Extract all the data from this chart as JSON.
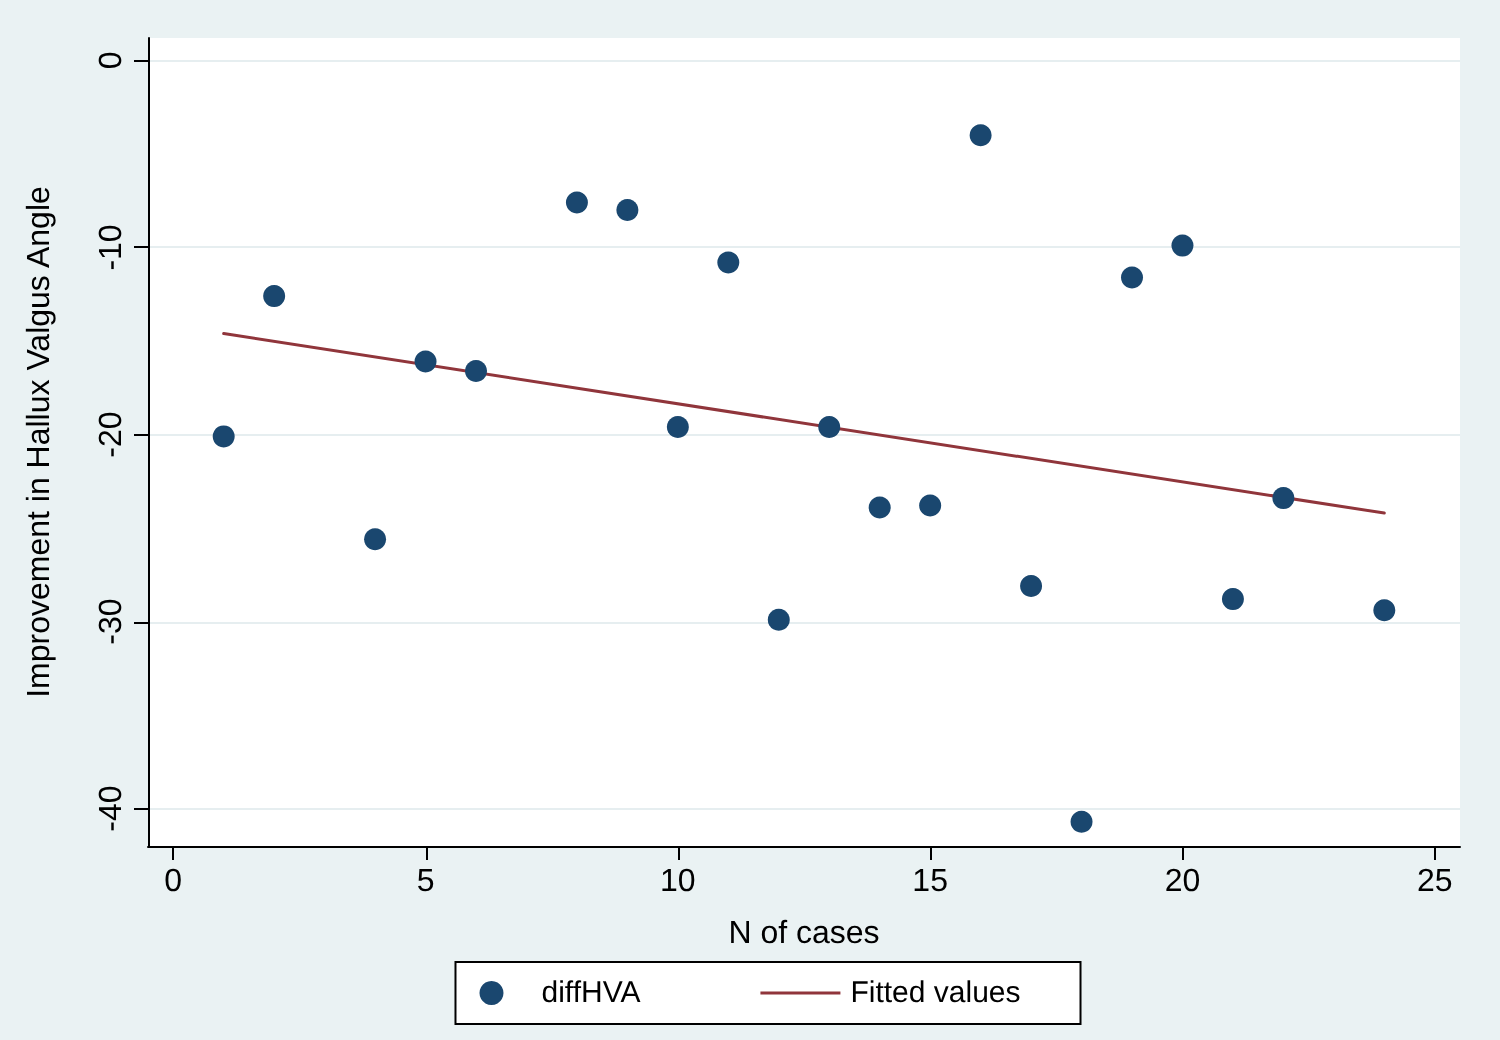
{
  "chart_data": {
    "type": "scatter",
    "xlabel": "N of cases",
    "ylabel": "Improvement in Hallux Valgus Angle",
    "x": [
      1,
      2,
      4,
      5,
      6,
      8,
      9,
      10,
      11,
      12,
      13,
      14,
      15,
      16,
      17,
      18,
      19,
      20,
      21,
      22,
      24
    ],
    "series": [
      {
        "name": "diffHVA",
        "color": "#1a476f",
        "marker": "circle",
        "values": [
          -20.1,
          -12.6,
          -25.6,
          -16.1,
          -16.6,
          -7.6,
          -8.0,
          -19.6,
          -10.8,
          -29.9,
          -19.6,
          -23.9,
          -23.8,
          -4.0,
          -28.1,
          -40.7,
          -11.6,
          -9.9,
          -28.8,
          -23.4,
          -29.4
        ]
      },
      {
        "name": "Fitted values",
        "type": "line",
        "color": "#90353b",
        "marker": "none",
        "line_style": "solid",
        "x": [
          1,
          24
        ],
        "values": [
          -14.6,
          -24.2
        ]
      }
    ],
    "xlim": [
      -0.5,
      25.5
    ],
    "xticks": [
      0,
      5,
      10,
      15,
      20,
      25
    ],
    "ylim": [
      -42,
      1.2
    ],
    "yticks": [
      0,
      -10,
      -20,
      -30,
      -40
    ],
    "grid": "y",
    "legend": "bottom"
  }
}
